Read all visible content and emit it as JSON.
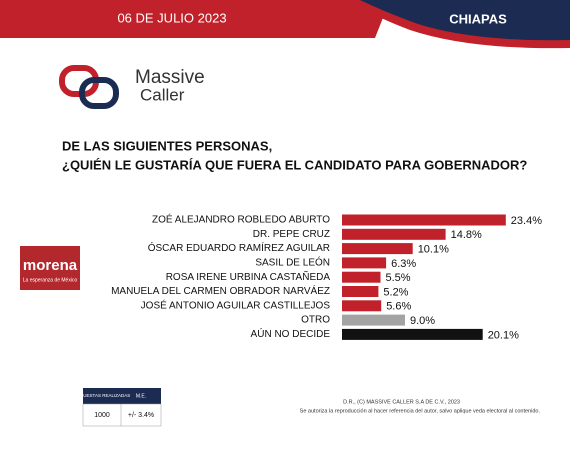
{
  "header": {
    "date": "06 DE JULIO 2023",
    "region": "CHIAPAS"
  },
  "logo": {
    "line1": "Massive",
    "line2": "Caller"
  },
  "party": {
    "name": "morena",
    "tagline": "La esperanza de México"
  },
  "chart_data": {
    "type": "bar",
    "orientation": "horizontal",
    "title": [
      "DE LAS SIGUIENTES PERSONAS,",
      "¿QUIÉN LE GUSTARÍA QUE FUERA EL CANDIDATO  PARA GOBERNADOR?"
    ],
    "categories": [
      "ZOÉ ALEJANDRO ROBLEDO ABURTO",
      "DR. PEPE CRUZ",
      "ÓSCAR EDUARDO RAMÍREZ AGUILAR",
      "SASIL DE LEÓN",
      "ROSA IRENE URBINA CASTAÑEDA",
      "MANUELA DEL CARMEN OBRADOR NARVÁEZ",
      "JOSÉ ANTONIO AGUILAR CASTILLEJOS",
      "OTRO",
      "AÚN NO DECIDE"
    ],
    "values": [
      23.4,
      14.8,
      10.1,
      6.3,
      5.5,
      5.2,
      5.6,
      9.0,
      20.1
    ],
    "value_labels": [
      "23.4%",
      "14.8%",
      "10.1%",
      "6.3%",
      "5.5%",
      "5.2%",
      "5.6%",
      "9.0%",
      "20.1%"
    ],
    "colors": [
      "#c1212b",
      "#c1212b",
      "#c1212b",
      "#c1212b",
      "#c1212b",
      "#c1212b",
      "#c1212b",
      "#a3a3a3",
      "#111111"
    ]
  },
  "table": {
    "headers": [
      "ENCUESTAS REALIZADAS",
      "M.E."
    ],
    "rows": [
      [
        "1000",
        "+/- 3.4%"
      ]
    ]
  },
  "footer": [
    "D.R., (C) MASSIVE CALLER S.A DE C.V., 2023",
    "Se autoriza la reproducción al hacer referencia del autor, salvo aplique veda electoral al contenido."
  ]
}
